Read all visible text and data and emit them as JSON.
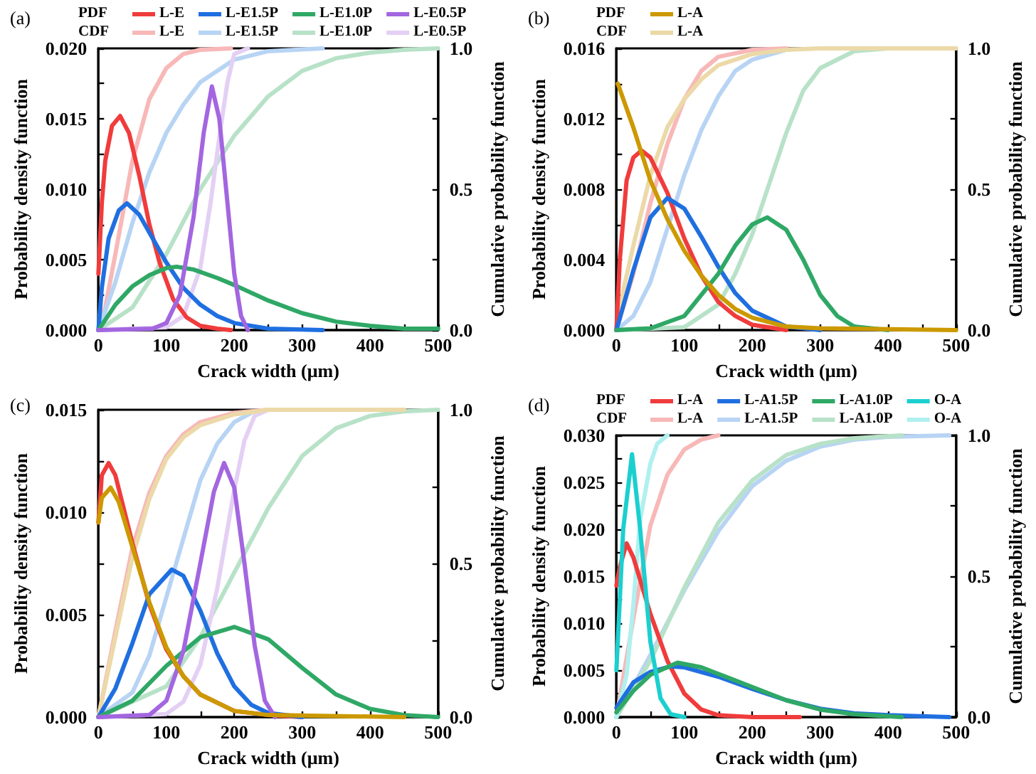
{
  "chart_data": [
    {
      "type": "line",
      "title": "(a)",
      "xlabel": "Crack width (μm)",
      "ylabel": "Probability density function",
      "y2label": "Cumulative probability function",
      "legend": "top",
      "marker": "none",
      "annotations": [
        "PDF",
        "CDF"
      ],
      "xlim": [
        0,
        500
      ],
      "xticks": [
        0,
        {
          "value": 50,
          "label": null
        },
        100,
        {
          "value": 150,
          "label": null
        },
        200,
        {
          "value": 250,
          "label": null
        },
        300,
        {
          "value": 350,
          "label": null
        },
        400,
        {
          "value": 450,
          "label": null
        },
        500
      ],
      "ylim": [
        0,
        0.02
      ],
      "yticks": [
        {
          "value": 0,
          "label": "0.000"
        },
        {
          "value": 0.0025,
          "label": null
        },
        {
          "value": 0.005,
          "label": "0.005"
        },
        {
          "value": 0.0075,
          "label": null
        },
        {
          "value": 0.01,
          "label": "0.010"
        },
        {
          "value": 0.0125,
          "label": null
        },
        {
          "value": 0.015,
          "label": "0.015"
        },
        {
          "value": 0.0175,
          "label": null
        },
        {
          "value": 0.02,
          "label": "0.020"
        }
      ],
      "y2lim": [
        0,
        1
      ],
      "y2ticks": [
        {
          "value": 0,
          "label": "0.0"
        },
        {
          "value": 0.25,
          "label": null
        },
        {
          "value": 0.5,
          "label": "0.5"
        },
        {
          "value": 0.75,
          "label": null
        },
        {
          "value": 1,
          "label": "1.0"
        }
      ],
      "series": [
        {
          "name": "L-E",
          "color": "#f03c3c",
          "x": [
            0,
            5,
            10,
            20,
            32,
            45,
            60,
            75,
            90,
            110,
            130,
            150,
            175,
            195
          ],
          "values": [
            0.004,
            0.009,
            0.012,
            0.0145,
            0.0152,
            0.014,
            0.011,
            0.0075,
            0.0048,
            0.0022,
            0.0009,
            0.0003,
            0.0001,
            0
          ]
        },
        {
          "name": "L-E1.5P",
          "color": "#1f6fe0",
          "x": [
            0,
            5,
            15,
            30,
            42,
            60,
            80,
            100,
            125,
            150,
            175,
            200,
            250,
            330
          ],
          "values": [
            0,
            0.003,
            0.0065,
            0.0085,
            0.009,
            0.0082,
            0.0065,
            0.0048,
            0.003,
            0.0018,
            0.001,
            0.0005,
            0.0001,
            0
          ]
        },
        {
          "name": "L-E1.0P",
          "color": "#2fa866",
          "x": [
            0,
            25,
            50,
            75,
            100,
            115,
            140,
            175,
            200,
            250,
            300,
            350,
            400,
            450,
            500
          ],
          "values": [
            0,
            0.0018,
            0.0031,
            0.0039,
            0.0044,
            0.0045,
            0.0043,
            0.0037,
            0.0032,
            0.0021,
            0.0012,
            0.0006,
            0.0003,
            0.0001,
            0.0001
          ]
        },
        {
          "name": "L-E0.5P",
          "color": "#a366e0",
          "x": [
            0,
            80,
            100,
            120,
            140,
            155,
            167,
            178,
            190,
            200,
            210,
            220
          ],
          "values": [
            0,
            0.0001,
            0.0005,
            0.0025,
            0.008,
            0.014,
            0.0173,
            0.015,
            0.009,
            0.004,
            0.001,
            0
          ]
        },
        {
          "name": "L-E",
          "color": "#f8b8b8",
          "axis": "y2",
          "x": [
            0,
            10,
            25,
            50,
            75,
            100,
            125,
            150,
            195
          ],
          "values": [
            0,
            0.08,
            0.27,
            0.6,
            0.82,
            0.93,
            0.98,
            0.995,
            1
          ]
        },
        {
          "name": "L-E1.5P",
          "color": "#b8d4f4",
          "axis": "y2",
          "x": [
            0,
            25,
            50,
            75,
            100,
            125,
            150,
            200,
            250,
            330
          ],
          "values": [
            0,
            0.17,
            0.38,
            0.56,
            0.7,
            0.8,
            0.88,
            0.96,
            0.99,
            1
          ]
        },
        {
          "name": "L-E1.0P",
          "color": "#b8e2c8",
          "axis": "y2",
          "x": [
            0,
            50,
            100,
            150,
            200,
            250,
            300,
            350,
            400,
            450,
            500
          ],
          "values": [
            0,
            0.08,
            0.27,
            0.5,
            0.69,
            0.83,
            0.92,
            0.965,
            0.985,
            0.995,
            1
          ]
        },
        {
          "name": "L-E0.5P",
          "color": "#e4d0f4",
          "axis": "y2",
          "x": [
            0,
            100,
            125,
            150,
            165,
            180,
            190,
            200,
            220
          ],
          "values": [
            0,
            0.01,
            0.05,
            0.22,
            0.45,
            0.72,
            0.88,
            0.98,
            1
          ]
        }
      ]
    },
    {
      "type": "line",
      "title": "(b)",
      "xlabel": "Crack width (μm)",
      "ylabel": "Probability density function",
      "y2label": "Cumulative probability function",
      "legend": "top",
      "marker": "none",
      "annotations": [
        "PDF",
        "CDF"
      ],
      "xlim": [
        0,
        500
      ],
      "xticks": [
        0,
        {
          "value": 50,
          "label": null
        },
        100,
        {
          "value": 150,
          "label": null
        },
        200,
        {
          "value": 250,
          "label": null
        },
        300,
        {
          "value": 350,
          "label": null
        },
        400,
        {
          "value": 450,
          "label": null
        },
        500
      ],
      "ylim": [
        0,
        0.016
      ],
      "yticks": [
        {
          "value": 0,
          "label": "0.000"
        },
        {
          "value": 0.002,
          "label": null
        },
        {
          "value": 0.004,
          "label": "0.004"
        },
        {
          "value": 0.006,
          "label": null
        },
        {
          "value": 0.008,
          "label": "0.008"
        },
        {
          "value": 0.01,
          "label": null
        },
        {
          "value": 0.012,
          "label": "0.012"
        },
        {
          "value": 0.014,
          "label": null
        },
        {
          "value": 0.016,
          "label": "0.016"
        }
      ],
      "y2lim": [
        0,
        1
      ],
      "y2ticks": [
        {
          "value": 0,
          "label": "0.0"
        },
        {
          "value": 0.25,
          "label": null
        },
        {
          "value": 0.5,
          "label": "0.5"
        },
        {
          "value": 0.75,
          "label": null
        },
        {
          "value": 1,
          "label": "1.0"
        }
      ],
      "series": [
        {
          "color": "#f03c3c",
          "x": [
            0,
            5,
            15,
            25,
            37,
            50,
            75,
            100,
            125,
            150,
            175,
            200,
            250
          ],
          "values": [
            0,
            0.004,
            0.0085,
            0.0098,
            0.0102,
            0.0098,
            0.0078,
            0.0052,
            0.0031,
            0.0016,
            0.0008,
            0.0003,
            0
          ]
        },
        {
          "color": "#1f6fe0",
          "x": [
            0,
            25,
            50,
            75,
            100,
            125,
            150,
            175,
            200,
            250,
            300
          ],
          "values": [
            0,
            0.0034,
            0.0064,
            0.0075,
            0.0069,
            0.0053,
            0.0036,
            0.0021,
            0.0011,
            0.0002,
            0
          ]
        },
        {
          "color": "#2fa866",
          "x": [
            0,
            50,
            100,
            150,
            175,
            200,
            222,
            250,
            275,
            300,
            325,
            350,
            400
          ],
          "values": [
            0,
            0.0001,
            0.0008,
            0.0032,
            0.0048,
            0.006,
            0.0064,
            0.0057,
            0.004,
            0.002,
            0.0008,
            0.0002,
            0
          ]
        },
        {
          "name": "L-A",
          "color": "#cc9900",
          "x": [
            2,
            25,
            50,
            75,
            100,
            125,
            150,
            175,
            200,
            250,
            300,
            500
          ],
          "values": [
            0.014,
            0.0115,
            0.0085,
            0.0063,
            0.0045,
            0.0031,
            0.002,
            0.0012,
            0.0007,
            0.0002,
            0.0001,
            0
          ]
        },
        {
          "color": "#f8b8b8",
          "axis": "y2",
          "x": [
            0,
            25,
            50,
            75,
            100,
            125,
            150,
            200,
            250
          ],
          "values": [
            0,
            0.2,
            0.45,
            0.66,
            0.82,
            0.92,
            0.97,
            0.995,
            1
          ]
        },
        {
          "color": "#b8d4f4",
          "axis": "y2",
          "x": [
            0,
            25,
            50,
            75,
            100,
            125,
            150,
            175,
            200,
            250
          ],
          "values": [
            0,
            0.05,
            0.17,
            0.36,
            0.55,
            0.71,
            0.83,
            0.92,
            0.96,
            0.995
          ]
        },
        {
          "color": "#b8e2c8",
          "axis": "y2",
          "x": [
            0,
            100,
            150,
            175,
            200,
            225,
            250,
            275,
            300,
            350,
            400
          ],
          "values": [
            0,
            0.01,
            0.09,
            0.2,
            0.34,
            0.52,
            0.7,
            0.85,
            0.93,
            0.99,
            1
          ]
        },
        {
          "name": "L-A",
          "color": "#ecd9a8",
          "axis": "y2",
          "x": [
            0,
            10,
            25,
            50,
            75,
            100,
            125,
            150,
            200,
            250,
            300,
            500
          ],
          "values": [
            0,
            0.14,
            0.3,
            0.55,
            0.72,
            0.82,
            0.89,
            0.94,
            0.98,
            0.995,
            1,
            1
          ]
        }
      ]
    },
    {
      "type": "line",
      "title": "(c)",
      "xlabel": "Crack width (μm)",
      "ylabel": "Probability density function",
      "y2label": "Cumulative probability function",
      "marker": "none",
      "xlim": [
        0,
        500
      ],
      "xticks": [
        0,
        {
          "value": 50,
          "label": null
        },
        100,
        {
          "value": 150,
          "label": null
        },
        200,
        {
          "value": 250,
          "label": null
        },
        300,
        {
          "value": 350,
          "label": null
        },
        400,
        {
          "value": 450,
          "label": null
        },
        500
      ],
      "ylim": [
        0,
        0.015
      ],
      "yticks": [
        {
          "value": 0,
          "label": "0.000"
        },
        {
          "value": 0.0025,
          "label": null
        },
        {
          "value": 0.005,
          "label": "0.005"
        },
        {
          "value": 0.0075,
          "label": null
        },
        {
          "value": 0.01,
          "label": "0.010"
        },
        {
          "value": 0.0125,
          "label": null
        },
        {
          "value": 0.015,
          "label": "0.015"
        }
      ],
      "y2lim": [
        0,
        1
      ],
      "y2ticks": [
        {
          "value": 0,
          "label": "0.0"
        },
        {
          "value": 0.25,
          "label": null
        },
        {
          "value": 0.5,
          "label": "0.5"
        },
        {
          "value": 0.75,
          "label": null
        },
        {
          "value": 1,
          "label": "1.0"
        }
      ],
      "series": [
        {
          "color": "#f03c3c",
          "x": [
            0,
            5,
            15,
            25,
            50,
            75,
            100,
            125,
            150,
            200,
            250,
            300
          ],
          "values": [
            0.0095,
            0.0118,
            0.0124,
            0.0118,
            0.0085,
            0.0055,
            0.0033,
            0.002,
            0.0011,
            0.0003,
            0.0001,
            0
          ]
        },
        {
          "color": "#1f6fe0",
          "x": [
            0,
            25,
            50,
            75,
            108,
            125,
            150,
            175,
            200,
            225,
            250,
            300
          ],
          "values": [
            0,
            0.0014,
            0.0036,
            0.006,
            0.0072,
            0.0069,
            0.0052,
            0.0031,
            0.0015,
            0.0006,
            0.0002,
            0
          ]
        },
        {
          "color": "#2fa866",
          "x": [
            0,
            50,
            100,
            150,
            200,
            250,
            300,
            350,
            400,
            450,
            500
          ],
          "values": [
            0,
            0.0008,
            0.0025,
            0.0039,
            0.0044,
            0.0038,
            0.0024,
            0.0011,
            0.0004,
            0.0001,
            0
          ]
        },
        {
          "color": "#a366e0",
          "x": [
            0,
            75,
            100,
            125,
            150,
            170,
            185,
            200,
            215,
            230,
            245,
            260
          ],
          "values": [
            0,
            0.0001,
            0.0008,
            0.0032,
            0.0075,
            0.011,
            0.0124,
            0.0112,
            0.0075,
            0.0035,
            0.0008,
            0
          ]
        },
        {
          "color": "#cc9900",
          "x": [
            0,
            5,
            18,
            30,
            50,
            75,
            100,
            125,
            150,
            200,
            250,
            450
          ],
          "values": [
            0.0095,
            0.0107,
            0.0112,
            0.0105,
            0.0083,
            0.0056,
            0.0034,
            0.002,
            0.0011,
            0.0003,
            0.0001,
            0
          ]
        },
        {
          "color": "#f8b8b8",
          "axis": "y2",
          "x": [
            0,
            25,
            50,
            75,
            100,
            125,
            150,
            200,
            250
          ],
          "values": [
            0,
            0.28,
            0.55,
            0.73,
            0.85,
            0.92,
            0.96,
            0.99,
            1
          ]
        },
        {
          "color": "#b8d4f4",
          "axis": "y2",
          "x": [
            0,
            50,
            75,
            100,
            125,
            150,
            175,
            200,
            225
          ],
          "values": [
            0,
            0.08,
            0.2,
            0.39,
            0.58,
            0.77,
            0.89,
            0.96,
            0.99
          ]
        },
        {
          "color": "#b8e2c8",
          "axis": "y2",
          "x": [
            0,
            100,
            150,
            200,
            250,
            300,
            350,
            400,
            450,
            500
          ],
          "values": [
            0,
            0.1,
            0.26,
            0.47,
            0.68,
            0.85,
            0.94,
            0.98,
            0.995,
            1
          ]
        },
        {
          "color": "#e4d0f4",
          "axis": "y2",
          "x": [
            0,
            100,
            125,
            150,
            175,
            200,
            215,
            230,
            250
          ],
          "values": [
            0,
            0.01,
            0.05,
            0.17,
            0.42,
            0.74,
            0.9,
            0.98,
            1
          ]
        },
        {
          "color": "#ecd9a8",
          "axis": "y2",
          "x": [
            0,
            25,
            50,
            75,
            100,
            125,
            150,
            200,
            250,
            450
          ],
          "values": [
            0,
            0.26,
            0.52,
            0.71,
            0.84,
            0.91,
            0.95,
            0.985,
            1,
            1
          ]
        }
      ]
    },
    {
      "type": "line",
      "title": "(d)",
      "xlabel": "Crack width (μm)",
      "ylabel": "Probability density function",
      "y2label": "Cumulative probability function",
      "legend": "top",
      "marker": "none",
      "annotations": [
        "PDF",
        "CDF"
      ],
      "xlim": [
        0,
        500
      ],
      "xticks": [
        0,
        {
          "value": 50,
          "label": null
        },
        100,
        {
          "value": 150,
          "label": null
        },
        200,
        {
          "value": 250,
          "label": null
        },
        300,
        {
          "value": 350,
          "label": null
        },
        400,
        {
          "value": 450,
          "label": null
        },
        500
      ],
      "ylim": [
        0,
        0.03
      ],
      "yticks": [
        {
          "value": 0,
          "label": "0.000"
        },
        {
          "value": 0.0025,
          "label": null
        },
        {
          "value": 0.005,
          "label": "0.005"
        },
        {
          "value": 0.0075,
          "label": null
        },
        {
          "value": 0.01,
          "label": "0.010"
        },
        {
          "value": 0.0125,
          "label": null
        },
        {
          "value": 0.015,
          "label": "0.015"
        },
        {
          "value": 0.0175,
          "label": null
        },
        {
          "value": 0.02,
          "label": "0.020"
        },
        {
          "value": 0.0225,
          "label": null
        },
        {
          "value": 0.025,
          "label": "0.025"
        },
        {
          "value": 0.0275,
          "label": null
        },
        {
          "value": 0.03,
          "label": "0.030"
        }
      ],
      "y2lim": [
        0,
        1
      ],
      "y2ticks": [
        {
          "value": 0,
          "label": "0.0"
        },
        {
          "value": 0.25,
          "label": null
        },
        {
          "value": 0.5,
          "label": "0.5"
        },
        {
          "value": 0.75,
          "label": null
        },
        {
          "value": 1,
          "label": "1.0"
        }
      ],
      "series": [
        {
          "name": "L-A",
          "color": "#f03c3c",
          "x": [
            0,
            5,
            15,
            25,
            50,
            75,
            100,
            125,
            150,
            200,
            270
          ],
          "values": [
            0.014,
            0.016,
            0.0185,
            0.017,
            0.011,
            0.006,
            0.0025,
            0.0008,
            0.0002,
            0,
            0
          ]
        },
        {
          "name": "L-A1.5P",
          "color": "#1f6fe0",
          "x": [
            0,
            25,
            50,
            80,
            100,
            150,
            200,
            250,
            300,
            350,
            400,
            490
          ],
          "values": [
            0.001,
            0.0037,
            0.0048,
            0.0054,
            0.0053,
            0.0043,
            0.003,
            0.0018,
            0.0009,
            0.0004,
            0.0002,
            0
          ]
        },
        {
          "name": "L-A1.0P",
          "color": "#2fa866",
          "x": [
            0,
            25,
            50,
            90,
            125,
            150,
            200,
            250,
            300,
            350,
            420
          ],
          "values": [
            0.0005,
            0.0028,
            0.0045,
            0.0058,
            0.0053,
            0.0046,
            0.0032,
            0.0018,
            0.0008,
            0.0003,
            0
          ]
        },
        {
          "name": "O-A",
          "color": "#1ccfcf",
          "x": [
            0,
            10,
            23,
            35,
            50,
            65,
            80,
            100
          ],
          "values": [
            0.005,
            0.02,
            0.028,
            0.02,
            0.008,
            0.002,
            0.0003,
            0
          ]
        },
        {
          "name": "L-A",
          "color": "#f8b8b8",
          "axis": "y2",
          "x": [
            0,
            25,
            50,
            75,
            100,
            125,
            150
          ],
          "values": [
            0,
            0.35,
            0.68,
            0.86,
            0.95,
            0.985,
            1
          ]
        },
        {
          "name": "L-A1.5P",
          "color": "#b8d4f4",
          "axis": "y2",
          "x": [
            0,
            50,
            100,
            150,
            200,
            250,
            300,
            350,
            400,
            490
          ],
          "values": [
            0,
            0.22,
            0.45,
            0.66,
            0.82,
            0.91,
            0.96,
            0.985,
            0.995,
            1
          ]
        },
        {
          "name": "L-A1.0P",
          "color": "#b8e2c8",
          "axis": "y2",
          "x": [
            0,
            50,
            100,
            150,
            200,
            250,
            300,
            350,
            420
          ],
          "values": [
            0,
            0.2,
            0.46,
            0.69,
            0.84,
            0.93,
            0.97,
            0.99,
            1
          ]
        },
        {
          "name": "O-A",
          "color": "#b0f0f0",
          "axis": "y2",
          "x": [
            0,
            15,
            25,
            35,
            50,
            60,
            75
          ],
          "values": [
            0,
            0.15,
            0.4,
            0.7,
            0.9,
            0.97,
            1
          ]
        }
      ]
    }
  ]
}
